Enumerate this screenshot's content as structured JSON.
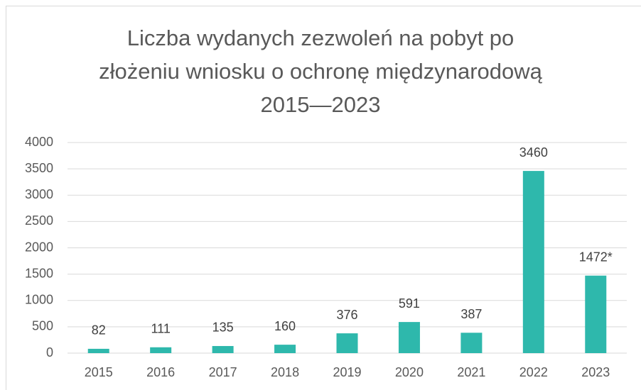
{
  "chart_data": {
    "type": "bar",
    "title": "Liczba wydanych zezwoleń na pobyt po\nzłożeniu wniosku o ochronę międzynarodową\n2015—2023",
    "categories": [
      "2015",
      "2016",
      "2017",
      "2018",
      "2019",
      "2020",
      "2021",
      "2022",
      "2023"
    ],
    "values": [
      82,
      111,
      135,
      160,
      376,
      591,
      387,
      3460,
      1472
    ],
    "value_labels": [
      "82",
      "111",
      "135",
      "160",
      "376",
      "591",
      "387",
      "3460",
      "1472*"
    ],
    "color": "#2eb8ac",
    "ylim": [
      0,
      4000
    ],
    "yticks": [
      0,
      500,
      1000,
      1500,
      2000,
      2500,
      3000,
      3500,
      4000
    ],
    "grid": true
  }
}
